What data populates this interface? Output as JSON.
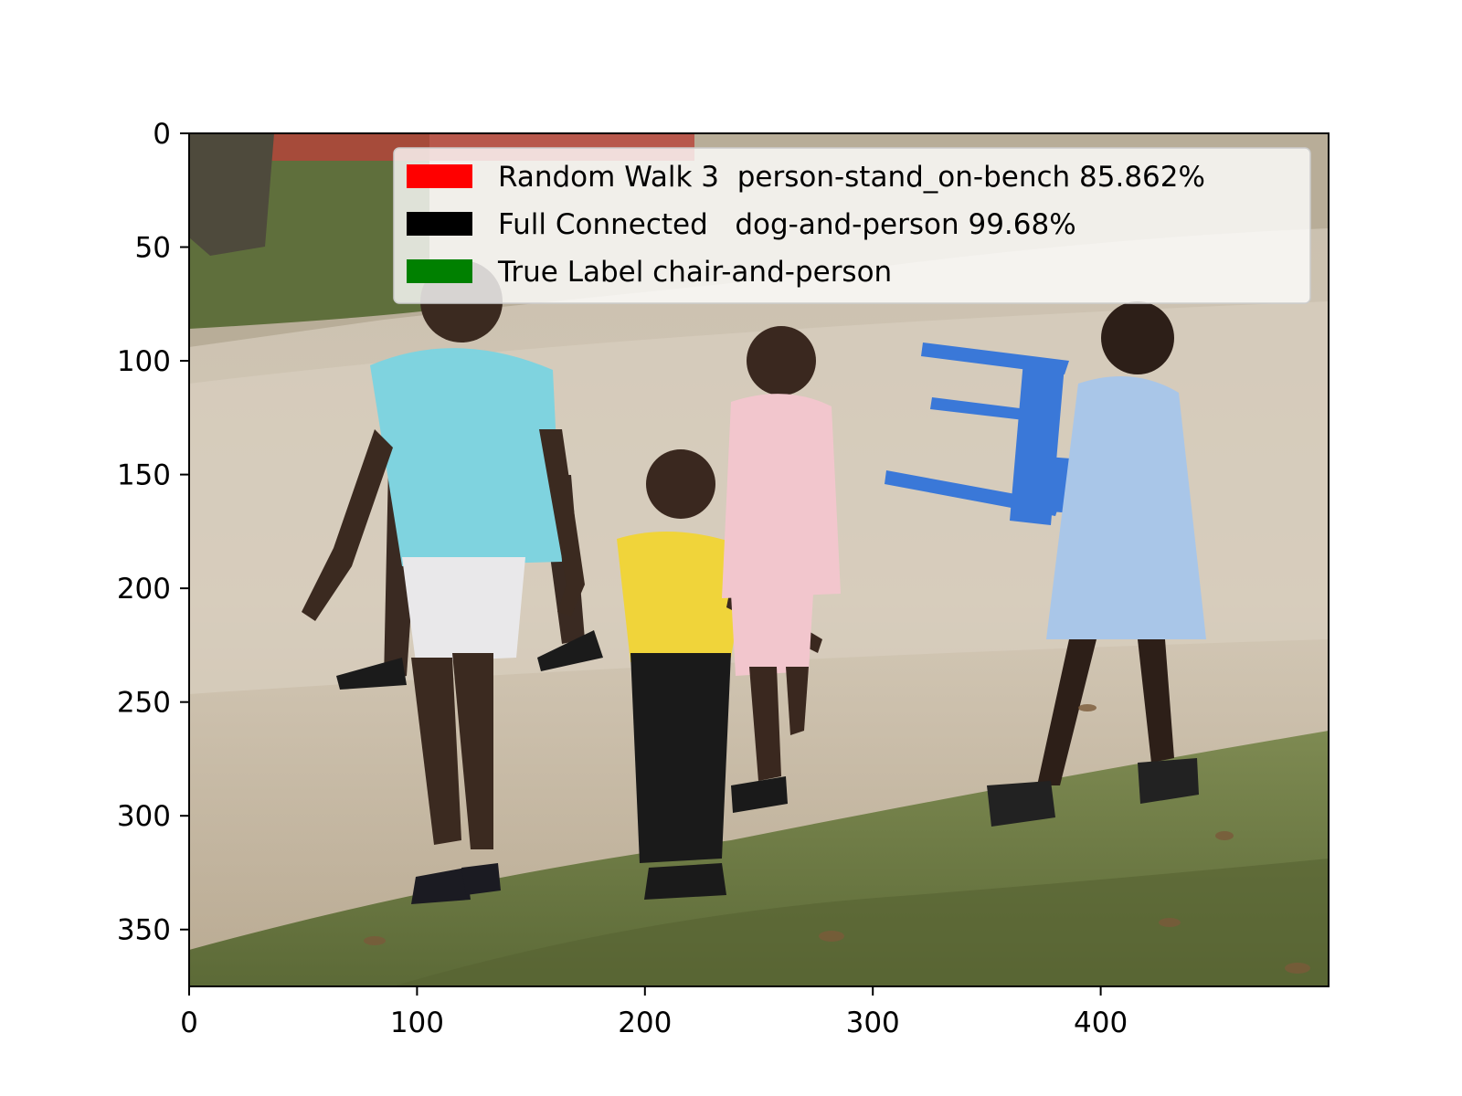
{
  "axes": {
    "x_ticks": [
      0,
      100,
      200,
      300,
      400
    ],
    "y_ticks": [
      0,
      50,
      100,
      150,
      200,
      250,
      300,
      350
    ],
    "xlim": [
      0,
      500
    ],
    "ylim": [
      375,
      0
    ]
  },
  "legend": {
    "placement": "upper-right",
    "entries": [
      {
        "label": "Random Walk 3  person-stand_on-bench 85.862%",
        "color": "#ff0000"
      },
      {
        "label": "Full Connected   dog-and-person 99.68%",
        "color": "#000000"
      },
      {
        "label": "True Label chair-and-person",
        "color": "#008000"
      }
    ]
  },
  "colors": {
    "ground": "#cfc4b2",
    "grass": "#6f7e44",
    "chair": "#3a78d8"
  }
}
